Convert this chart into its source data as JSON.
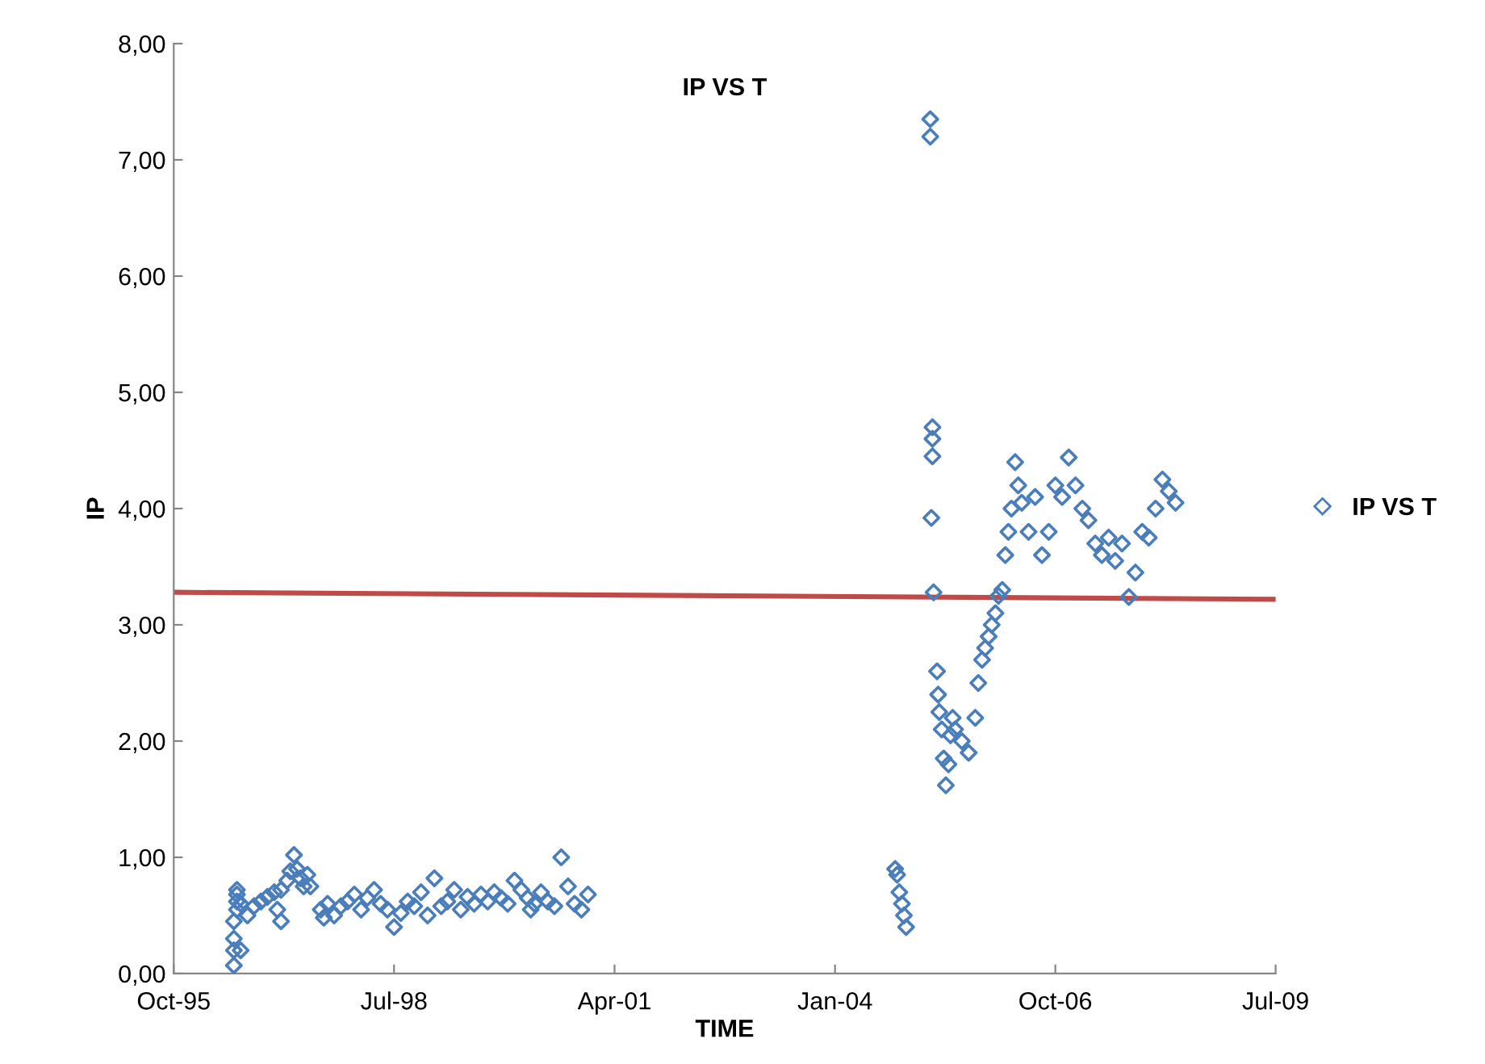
{
  "chart_data": {
    "type": "scatter",
    "title": "IP VS T",
    "xlabel": "TIME",
    "ylabel": "IP",
    "xlim": [
      "1995-10-01",
      "2009-07-01"
    ],
    "xticks": [
      {
        "value": "1995-10-01",
        "label": "Oct-95"
      },
      {
        "value": "1998-07-01",
        "label": "Jul-98"
      },
      {
        "value": "2001-04-01",
        "label": "Apr-01"
      },
      {
        "value": "2004-01-01",
        "label": "Jan-04"
      },
      {
        "value": "2006-10-01",
        "label": "Oct-06"
      },
      {
        "value": "2009-07-01",
        "label": "Jul-09"
      }
    ],
    "ylim": [
      0,
      8
    ],
    "yticks": [
      {
        "value": 0,
        "label": "0,00"
      },
      {
        "value": 1,
        "label": "1,00"
      },
      {
        "value": 2,
        "label": "2,00"
      },
      {
        "value": 3,
        "label": "3,00"
      },
      {
        "value": 4,
        "label": "4,00"
      },
      {
        "value": 5,
        "label": "5,00"
      },
      {
        "value": 6,
        "label": "6,00"
      },
      {
        "value": 7,
        "label": "7,00"
      },
      {
        "value": 8,
        "label": "8,00"
      }
    ],
    "grid": false,
    "legend": "right",
    "series": [
      {
        "name": "IP VS T",
        "color": "#4a7ebb",
        "marker": "diamond",
        "x": [
          "1996-07-01",
          "1996-07-01",
          "1996-07-01",
          "1996-07-01",
          "1996-07-15",
          "1996-07-15",
          "1996-07-15",
          "1996-07-15",
          "1996-08-01",
          "1996-08-01",
          "1996-09-01",
          "1996-10-01",
          "1996-11-01",
          "1996-12-01",
          "1997-01-01",
          "1997-01-15",
          "1997-02-01",
          "1997-02-01",
          "1997-03-01",
          "1997-03-15",
          "1997-04-01",
          "1997-04-15",
          "1997-05-01",
          "1997-05-15",
          "1997-06-01",
          "1997-06-15",
          "1997-08-01",
          "1997-08-15",
          "1997-09-01",
          "1997-10-01",
          "1997-11-01",
          "1997-12-01",
          "1998-01-01",
          "1998-02-01",
          "1998-03-01",
          "1998-04-01",
          "1998-05-01",
          "1998-06-01",
          "1998-07-01",
          "1998-08-01",
          "1998-09-01",
          "1998-10-01",
          "1998-11-01",
          "1998-12-01",
          "1999-01-01",
          "1999-02-01",
          "1999-03-01",
          "1999-04-01",
          "1999-05-01",
          "1999-06-01",
          "1999-07-01",
          "1999-08-01",
          "1999-09-01",
          "1999-10-01",
          "1999-11-01",
          "1999-12-01",
          "2000-01-01",
          "2000-02-01",
          "2000-03-01",
          "2000-03-15",
          "2000-04-01",
          "2000-05-01",
          "2000-06-01",
          "2000-07-01",
          "2000-08-01",
          "2000-09-01",
          "2000-10-01",
          "2000-11-01",
          "2000-12-01",
          "2004-10-01",
          "2004-10-10",
          "2004-10-20",
          "2004-11-01",
          "2004-11-10",
          "2004-11-20",
          "2005-03-10",
          "2005-03-10",
          "2005-03-20",
          "2005-03-20",
          "2005-03-20",
          "2005-03-15",
          "2005-03-25",
          "2005-04-10",
          "2005-04-15",
          "2005-04-20",
          "2005-05-01",
          "2005-05-10",
          "2005-05-20",
          "2005-06-01",
          "2005-06-10",
          "2005-06-20",
          "2005-07-01",
          "2005-08-01",
          "2005-09-01",
          "2005-10-01",
          "2005-10-15",
          "2005-11-01",
          "2005-11-15",
          "2005-12-01",
          "2005-12-15",
          "2006-01-01",
          "2006-01-15",
          "2006-02-01",
          "2006-02-15",
          "2006-03-01",
          "2006-03-15",
          "2006-04-01",
          "2006-04-15",
          "2006-05-01",
          "2006-06-01",
          "2006-07-01",
          "2006-08-01",
          "2006-09-01",
          "2006-10-01",
          "2006-11-01",
          "2006-12-01",
          "2007-01-01",
          "2007-02-01",
          "2007-03-01",
          "2007-04-01",
          "2007-05-01",
          "2007-06-01",
          "2007-07-01",
          "2007-08-01",
          "2007-09-01",
          "2007-10-01",
          "2007-11-01",
          "2007-12-01",
          "2008-01-01",
          "2008-02-01",
          "2008-03-01",
          "2008-04-01"
        ],
        "values": [
          0.07,
          0.2,
          0.3,
          0.45,
          0.55,
          0.62,
          0.68,
          0.72,
          0.6,
          0.2,
          0.5,
          0.58,
          0.62,
          0.66,
          0.7,
          0.55,
          0.72,
          0.45,
          0.8,
          0.88,
          1.02,
          0.9,
          0.82,
          0.75,
          0.85,
          0.75,
          0.55,
          0.48,
          0.6,
          0.5,
          0.58,
          0.62,
          0.68,
          0.55,
          0.65,
          0.72,
          0.6,
          0.55,
          0.4,
          0.52,
          0.62,
          0.58,
          0.7,
          0.5,
          0.82,
          0.58,
          0.62,
          0.72,
          0.55,
          0.66,
          0.6,
          0.68,
          0.62,
          0.7,
          0.65,
          0.6,
          0.8,
          0.72,
          0.65,
          0.55,
          0.6,
          0.7,
          0.62,
          0.58,
          1.0,
          0.75,
          0.6,
          0.55,
          0.68,
          0.9,
          0.85,
          0.7,
          0.6,
          0.5,
          0.4,
          7.35,
          7.2,
          4.7,
          4.6,
          4.45,
          3.92,
          3.28,
          2.6,
          2.4,
          2.25,
          2.1,
          1.85,
          1.62,
          1.8,
          2.05,
          2.2,
          2.1,
          2.0,
          1.9,
          2.2,
          2.5,
          2.7,
          2.8,
          2.9,
          3.0,
          3.1,
          3.25,
          3.3,
          3.6,
          3.8,
          4.0,
          4.4,
          4.2,
          4.05,
          3.8,
          4.1,
          3.6,
          3.8,
          4.2,
          4.1,
          4.44,
          4.2,
          4.0,
          3.9,
          3.7,
          3.6,
          3.75,
          3.55,
          3.7,
          3.24,
          3.45,
          3.8,
          3.75,
          4.0,
          4.25,
          4.15,
          4.05
        ]
      },
      {
        "type": "line",
        "color": "#be4b48",
        "x": [
          "1995-10-01",
          "2009-07-01"
        ],
        "values": [
          3.28,
          3.22
        ]
      }
    ]
  }
}
